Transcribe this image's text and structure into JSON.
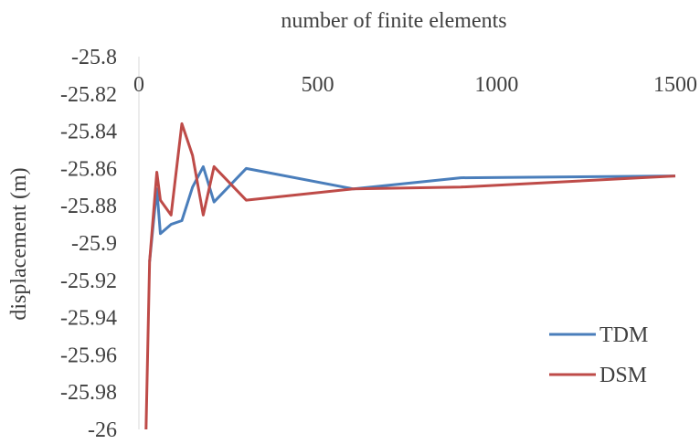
{
  "chart_data": {
    "type": "line",
    "title": "number of finite elements",
    "xlabel": "",
    "ylabel": "displacement (m)",
    "x_axis_position": "top",
    "xlim": [
      0,
      1500
    ],
    "ylim": [
      -26,
      -25.8
    ],
    "xticks": [
      0,
      500,
      1000,
      1500
    ],
    "xtick_labels": [
      "0",
      "500",
      "1000",
      "1500"
    ],
    "yticks": [
      -25.8,
      -25.82,
      -25.84,
      -25.86,
      -25.88,
      -25.9,
      -25.92,
      -25.94,
      -25.96,
      -25.98,
      -26
    ],
    "ytick_labels": [
      "-25.8",
      "-25.82",
      "-25.84",
      "-25.86",
      "-25.88",
      "-25.9",
      "-25.92",
      "-25.94",
      "-25.96",
      "-25.98",
      "-26"
    ],
    "grid": false,
    "legend_position": "bottom-right",
    "series": [
      {
        "name": "TDM",
        "color": "#4a7ebb",
        "x": [
          30,
          40,
          50,
          60,
          90,
          120,
          150,
          180,
          210,
          300,
          600,
          900,
          1500
        ],
        "y": [
          -25.91,
          -25.89,
          -25.871,
          -25.895,
          -25.89,
          -25.888,
          -25.87,
          -25.859,
          -25.878,
          -25.86,
          -25.871,
          -25.865,
          -25.864
        ]
      },
      {
        "name": "DSM",
        "color": "#be4b48",
        "x": [
          20,
          30,
          50,
          60,
          90,
          120,
          150,
          180,
          210,
          300,
          600,
          900,
          1500
        ],
        "y": [
          -26.0,
          -25.91,
          -25.862,
          -25.877,
          -25.885,
          -25.836,
          -25.853,
          -25.885,
          -25.859,
          -25.877,
          -25.871,
          -25.87,
          -25.864
        ]
      }
    ]
  }
}
